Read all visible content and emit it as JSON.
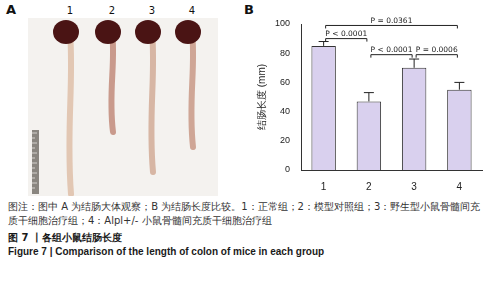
{
  "panels": {
    "a": {
      "label": "A",
      "items": [
        "1",
        "2",
        "3",
        "4"
      ]
    },
    "b": {
      "label": "B"
    }
  },
  "chart_data": {
    "type": "bar",
    "categories": [
      "1",
      "2",
      "3",
      "4"
    ],
    "values": [
      85,
      47,
      70,
      55
    ],
    "errors": [
      3,
      6,
      6,
      5
    ],
    "color": "#d9d0ee",
    "y_label": "结肠长度 (mm)",
    "ylim": [
      0,
      100
    ],
    "yticks": [
      0,
      20,
      40,
      60,
      80,
      100
    ],
    "grid": false,
    "annotations": [
      {
        "text": "P < 0.0001",
        "from": "1",
        "to": "2",
        "y": 90
      },
      {
        "text": "P = 0.0361",
        "from": "1",
        "to": "4",
        "y": 99
      },
      {
        "text": "P < 0.0001",
        "from": "2",
        "to": "3",
        "y": 79
      },
      {
        "text": "P = 0.0006",
        "from": "3",
        "to": "4",
        "y": 79
      }
    ]
  },
  "caption": {
    "note": "图注：图中 A 为结肠大体观察；B 为结肠长度比较。1：正常组；2：模型对照组；3：野生型小鼠骨髓间充质干细胞治疗组；4：Alpl+/- 小鼠骨髓间充质干细胞治疗组",
    "title_zh": "图 7 丨各组小鼠结肠长度",
    "title_en": "Figure 7 | Comparison of the length of colon of mice in each group"
  }
}
